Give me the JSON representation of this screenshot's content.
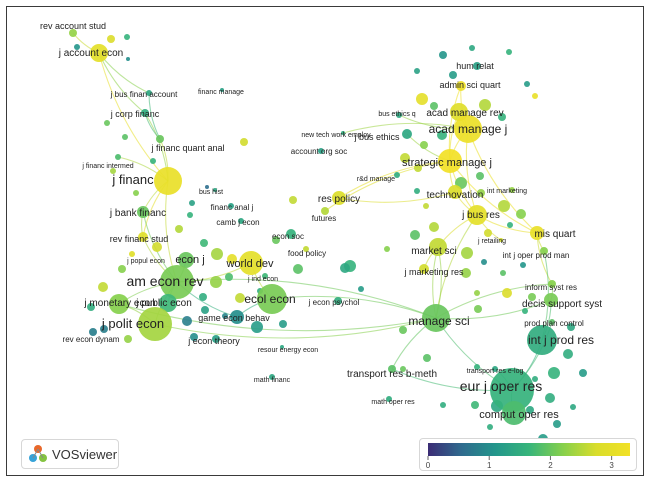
{
  "app": {
    "name": "VOSviewer"
  },
  "colors": {
    "background": "#ffffff",
    "frame_border": "#3a3a3a",
    "scale": [
      "#3b2c75",
      "#2f6b8e",
      "#23968b",
      "#37b57b",
      "#86d04c",
      "#d9dd2b",
      "#f2e126"
    ]
  },
  "color_scale": {
    "min": 0,
    "max": 3.3,
    "ticks": [
      "0",
      "1",
      "2",
      "3"
    ]
  },
  "nodes": [
    {
      "label": "rev account stud",
      "v": 2.3
    },
    {
      "label": "j account econ",
      "v": 3.0
    },
    {
      "label": "j bus finan account",
      "v": 1.4
    },
    {
      "label": "financ manage",
      "v": 1.3
    },
    {
      "label": "j corp financ",
      "v": 1.5
    },
    {
      "label": "j financ quant anal",
      "v": 2.0
    },
    {
      "label": "j financ intermed",
      "v": 1.8
    },
    {
      "label": "j financ",
      "v": 3.1
    },
    {
      "label": "j bank financ",
      "v": 2.0
    },
    {
      "label": "rev financ stud",
      "v": 2.9
    },
    {
      "label": "j popul econ",
      "v": 2.9
    },
    {
      "label": "econ j",
      "v": 2.0
    },
    {
      "label": "am econ rev",
      "v": 2.1
    },
    {
      "label": "j monetary econ",
      "v": 2.2
    },
    {
      "label": "j public econ",
      "v": 1.7
    },
    {
      "label": "j polit econ",
      "v": 2.4
    },
    {
      "label": "rev econ dynam",
      "v": 0.8
    },
    {
      "label": "bus hist",
      "v": 1.4
    },
    {
      "label": "financ anal j",
      "v": 1.3
    },
    {
      "label": "camb j econ",
      "v": 1.4
    },
    {
      "label": "world dev",
      "v": 3.0
    },
    {
      "label": "j ind econ",
      "v": 1.7
    },
    {
      "label": "game econ behav",
      "v": 1.0
    },
    {
      "label": "ecol econ",
      "v": 2.1
    },
    {
      "label": "j econ theory",
      "v": 1.3
    },
    {
      "label": "econ soc",
      "v": 1.6
    },
    {
      "label": "food policy",
      "v": 2.6
    },
    {
      "label": "j econ psychol",
      "v": 1.5
    },
    {
      "label": "resour energy econ",
      "v": 1.4
    },
    {
      "label": "math financ",
      "v": 1.4
    },
    {
      "label": "new tech work employ",
      "v": 1.5
    },
    {
      "label": "account org soc",
      "v": 1.3
    },
    {
      "label": "res policy",
      "v": 2.8
    },
    {
      "label": "futures",
      "v": 2.5
    },
    {
      "label": "hum relat",
      "v": 1.3
    },
    {
      "label": "admin sci quart",
      "v": 3.2
    },
    {
      "label": "bus ethics q",
      "v": 1.4
    },
    {
      "label": "acad manage rev",
      "v": 2.9
    },
    {
      "label": "acad manage j",
      "v": 3.2
    },
    {
      "label": "j bus ethics",
      "v": 1.4
    },
    {
      "label": "strategic manage j",
      "v": 3.3
    },
    {
      "label": "r&d manage",
      "v": 1.5
    },
    {
      "label": "technovation",
      "v": 2.8
    },
    {
      "label": "int marketing",
      "v": 2.3
    },
    {
      "label": "j bus res",
      "v": 3.0
    },
    {
      "label": "mis quart",
      "v": 3.1
    },
    {
      "label": "j retailing",
      "v": 2.7
    },
    {
      "label": "market sci",
      "v": 2.6
    },
    {
      "label": "int j oper prod man",
      "v": 2.2
    },
    {
      "label": "j marketing res",
      "v": 2.7
    },
    {
      "label": "inform syst res",
      "v": 2.2
    },
    {
      "label": "decis support syst",
      "v": 2.1
    },
    {
      "label": "manage sci",
      "v": 2.0
    },
    {
      "label": "prod plan control",
      "v": 1.9
    },
    {
      "label": "int j prod res",
      "v": 1.5
    },
    {
      "label": "transport res b-meth",
      "v": 1.9
    },
    {
      "label": "transport res e-log",
      "v": 1.4
    },
    {
      "label": "eur j oper res",
      "v": 1.6
    },
    {
      "label": "math oper res",
      "v": 1.5
    },
    {
      "label": "comput oper res",
      "v": 1.8
    }
  ]
}
